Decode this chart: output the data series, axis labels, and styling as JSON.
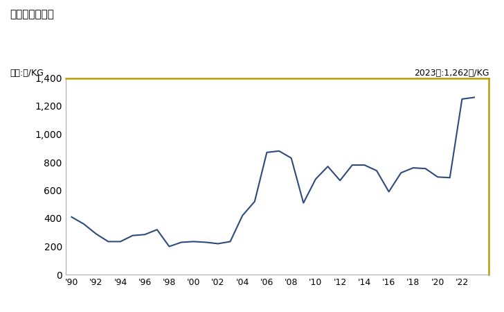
{
  "title": "輸入価格の推移",
  "ylabel": "単位:円/KG",
  "annotation": "2023年:1,262円/KG",
  "line_color": "#2e4a7a",
  "border_top_right_color": "#b8a000",
  "border_bottom_left_color": "#aaaaaa",
  "background_color": "#ffffff",
  "years": [
    1990,
    1991,
    1992,
    1993,
    1994,
    1995,
    1996,
    1997,
    1998,
    1999,
    2000,
    2001,
    2002,
    2003,
    2004,
    2005,
    2006,
    2007,
    2008,
    2009,
    2010,
    2011,
    2012,
    2013,
    2014,
    2015,
    2016,
    2017,
    2018,
    2019,
    2020,
    2021,
    2022,
    2023
  ],
  "values": [
    410,
    360,
    290,
    235,
    235,
    278,
    285,
    320,
    200,
    230,
    235,
    230,
    220,
    235,
    420,
    520,
    870,
    880,
    830,
    510,
    680,
    770,
    670,
    780,
    780,
    740,
    590,
    725,
    760,
    755,
    695,
    690,
    1250,
    1262
  ],
  "ylim": [
    0,
    1400
  ],
  "yticks": [
    0,
    200,
    400,
    600,
    800,
    1000,
    1200,
    1400
  ],
  "ytick_labels": [
    "0",
    "200",
    "400",
    "600",
    "800",
    "1,000",
    "1,200",
    "1,400"
  ],
  "xtick_years": [
    1990,
    1992,
    1994,
    1996,
    1998,
    2000,
    2002,
    2004,
    2006,
    2008,
    2010,
    2012,
    2014,
    2016,
    2018,
    2020,
    2022
  ],
  "xtick_labels": [
    "'90",
    "'92",
    "'94",
    "'96",
    "'98",
    "'00",
    "'02",
    "'04",
    "'06",
    "'08",
    "'10",
    "'12",
    "'14",
    "'16",
    "'18",
    "'20",
    "'22"
  ],
  "xlim_left": 1989.5,
  "xlim_right": 2024.2,
  "line_width": 1.5,
  "tick_fontsize": 9,
  "title_fontsize": 11,
  "label_fontsize": 9,
  "annotation_fontsize": 9
}
